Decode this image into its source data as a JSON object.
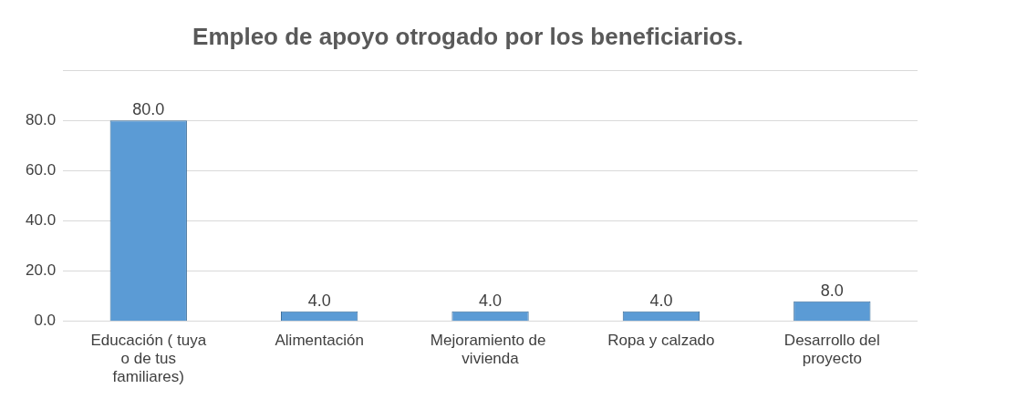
{
  "chart_data": {
    "type": "bar",
    "title": "Empleo de apoyo otrogado por los beneficiarios.",
    "categories": [
      "Educación ( tuya o de tus familiares)",
      "Alimentación",
      "Mejoramiento de  vivienda",
      "Ropa y calzado",
      "Desarrollo del proyecto"
    ],
    "values": [
      80,
      4,
      4,
      4,
      8
    ],
    "value_labels": [
      "80.0",
      "4.0",
      "4.0",
      "4.0",
      "8.0"
    ],
    "color": "#5b9bd5",
    "ylim": [
      0,
      100
    ],
    "yticks": [
      {
        "value": 0,
        "label": "0.0"
      },
      {
        "value": 20,
        "label": "20.0"
      },
      {
        "value": 40,
        "label": "40.0"
      },
      {
        "value": 60,
        "label": "60.0"
      },
      {
        "value": 80,
        "label": "80.0"
      },
      {
        "value": 100,
        "label": null
      }
    ],
    "grid": "y",
    "legend": false
  }
}
